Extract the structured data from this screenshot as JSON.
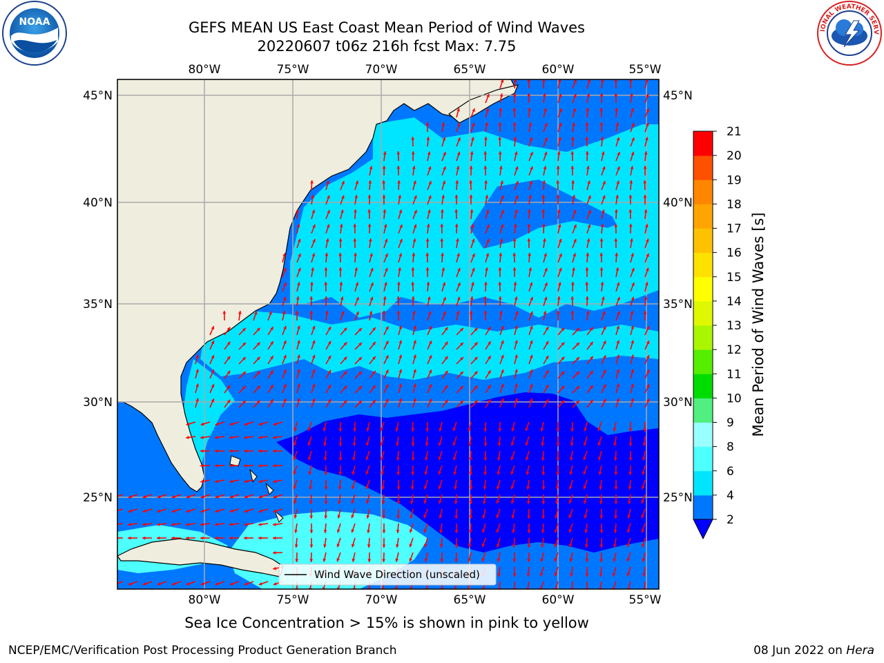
{
  "header": {
    "title": "GEFS MEAN US East Coast Mean Period of Wind Waves",
    "subtitle": "20220607 t06z 216h fcst   Max: 7.75"
  },
  "logos": {
    "left": {
      "text": "NOAA",
      "icon": "noaa-logo-icon"
    },
    "right": {
      "text": "NATIONAL WEATHER SERVICE",
      "icon": "nws-logo-icon"
    }
  },
  "map": {
    "lon_ticks_top": [
      "80°W",
      "75°W",
      "70°W",
      "65°W",
      "60°W",
      "55°W"
    ],
    "lon_ticks_bottom": [
      "80°W",
      "75°W",
      "70°W",
      "65°W",
      "60°W",
      "55°W"
    ],
    "lat_ticks_left": [
      "45°N",
      "40°N",
      "35°N",
      "30°N",
      "25°N"
    ],
    "lat_ticks_right": [
      "45°N",
      "40°N",
      "35°N",
      "30°N",
      "25°N"
    ],
    "lon_range": [
      -85,
      -54.3
    ],
    "lat_range": [
      20.5,
      46.0
    ],
    "legend": "Wind Wave Direction (unscaled)",
    "arrow_color": "#ff0000",
    "land_color": "#efedde"
  },
  "colorbar": {
    "label": "Mean Period of Wind Waves [s]",
    "ticks": [
      "2",
      "4",
      "6",
      "8",
      "9",
      "10",
      "11",
      "12",
      "13",
      "14",
      "15",
      "16",
      "17",
      "18",
      "19",
      "20",
      "21"
    ],
    "colors": [
      "#0077ff",
      "#00e5ff",
      "#4dffff",
      "#99ffff",
      "#50ef80",
      "#00dc00",
      "#55ee00",
      "#aaf500",
      "#ddf800",
      "#ffff00",
      "#ffe100",
      "#ffc200",
      "#ffa400",
      "#ff8600",
      "#ff5000",
      "#ff0000"
    ],
    "under_color": "#0000ff"
  },
  "footer": {
    "sea_ice": "Sea Ice Concentration > 15% is shown in pink to yellow",
    "left": "NCEP/EMC/Verification Post Processing Product Generation Branch",
    "date": "08 Jun 2022 on",
    "machine": "Hera"
  }
}
